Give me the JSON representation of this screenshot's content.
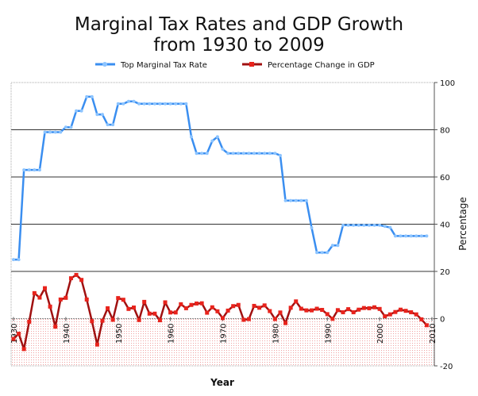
{
  "chart_data": {
    "type": "line",
    "title": "Marginal Tax Rates and GDP Growth",
    "subtitle": "from 1930 to 2009",
    "xlabel": "Year",
    "ylabel": "Percentage",
    "ylim": [
      -20,
      100
    ],
    "yticks": [
      "100",
      "80",
      "60",
      "40",
      "20",
      "0",
      "-20"
    ],
    "xticks": [
      "1930",
      "1940",
      "1950",
      "1960",
      "1970",
      "1980",
      "1990",
      "2000",
      "2010"
    ],
    "xlim": [
      1930,
      2010
    ],
    "grid": true,
    "legend_position": "top",
    "x_start": 1930,
    "series": [
      {
        "name": "Top Marginal Tax Rate",
        "color": "#3a8ef0",
        "values": [
          25,
          25,
          63,
          63,
          63,
          63,
          79,
          79,
          79,
          79,
          81.1,
          81,
          88,
          88,
          94,
          94,
          86.45,
          86.45,
          82.13,
          82.13,
          91,
          91,
          92,
          92,
          91,
          91,
          91,
          91,
          91,
          91,
          91,
          91,
          91,
          91,
          77,
          70,
          70,
          70,
          75.25,
          77,
          71.75,
          70,
          70,
          70,
          70,
          70,
          70,
          70,
          70,
          70,
          70,
          69.13,
          50,
          50,
          50,
          50,
          50,
          38.5,
          28,
          28,
          28,
          31,
          31,
          39.6,
          39.6,
          39.6,
          39.6,
          39.6,
          39.6,
          39.6,
          39.6,
          39.1,
          38.6,
          35,
          35,
          35,
          35,
          35,
          35,
          35
        ]
      },
      {
        "name": "Percentage Change in GDP",
        "color": "#e8231c",
        "values": [
          -8.6,
          -6.4,
          -12.9,
          -1.3,
          10.8,
          8.9,
          12.9,
          5.1,
          -3.4,
          8.1,
          8.8,
          17.1,
          18.5,
          16.4,
          8.1,
          -1.1,
          -11.0,
          -0.9,
          4.4,
          -0.5,
          8.7,
          8.0,
          4.1,
          4.7,
          -0.6,
          7.1,
          2.1,
          2.1,
          -0.7,
          6.9,
          2.6,
          2.6,
          6.1,
          4.4,
          5.8,
          6.4,
          6.5,
          2.5,
          4.8,
          3.1,
          0.2,
          3.4,
          5.3,
          5.8,
          -0.5,
          -0.2,
          5.4,
          4.6,
          5.6,
          3.2,
          -0.2,
          2.6,
          -1.9,
          4.6,
          7.3,
          4.2,
          3.5,
          3.5,
          4.2,
          3.7,
          1.9,
          -0.1,
          3.6,
          2.7,
          4.0,
          2.7,
          3.8,
          4.5,
          4.4,
          4.8,
          4.1,
          1.0,
          1.8,
          2.8,
          3.8,
          3.3,
          2.7,
          1.8,
          -0.3,
          -2.8
        ]
      }
    ]
  }
}
